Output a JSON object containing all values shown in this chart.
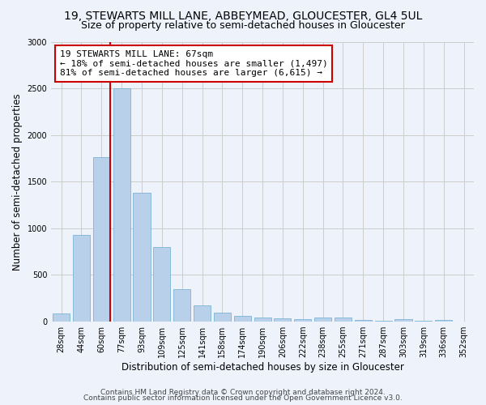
{
  "title": "19, STEWARTS MILL LANE, ABBEYMEAD, GLOUCESTER, GL4 5UL",
  "subtitle": "Size of property relative to semi-detached houses in Gloucester",
  "xlabel": "Distribution of semi-detached houses by size in Gloucester",
  "ylabel": "Number of semi-detached properties",
  "bar_labels": [
    "28sqm",
    "44sqm",
    "60sqm",
    "77sqm",
    "93sqm",
    "109sqm",
    "125sqm",
    "141sqm",
    "158sqm",
    "174sqm",
    "190sqm",
    "206sqm",
    "222sqm",
    "238sqm",
    "255sqm",
    "271sqm",
    "287sqm",
    "303sqm",
    "319sqm",
    "336sqm",
    "352sqm"
  ],
  "bar_values": [
    90,
    930,
    1760,
    2500,
    1380,
    800,
    350,
    175,
    100,
    65,
    45,
    35,
    25,
    40,
    45,
    20,
    10,
    30,
    10,
    20,
    5
  ],
  "bar_color": "#b8d0ea",
  "bar_edgecolor": "#6aabd2",
  "highlight_line_color": "#cc0000",
  "annotation_text": "19 STEWARTS MILL LANE: 67sqm\n← 18% of semi-detached houses are smaller (1,497)\n81% of semi-detached houses are larger (6,615) →",
  "annotation_box_color": "#ffffff",
  "annotation_box_edgecolor": "#cc0000",
  "ylim": [
    0,
    3000
  ],
  "yticks": [
    0,
    500,
    1000,
    1500,
    2000,
    2500,
    3000
  ],
  "grid_color": "#cccccc",
  "bg_color": "#eef2fb",
  "footer_line1": "Contains HM Land Registry data © Crown copyright and database right 2024.",
  "footer_line2": "Contains public sector information licensed under the Open Government Licence v3.0.",
  "title_fontsize": 10,
  "subtitle_fontsize": 9,
  "axis_label_fontsize": 8.5,
  "tick_fontsize": 7,
  "annotation_fontsize": 8,
  "footer_fontsize": 6.5
}
